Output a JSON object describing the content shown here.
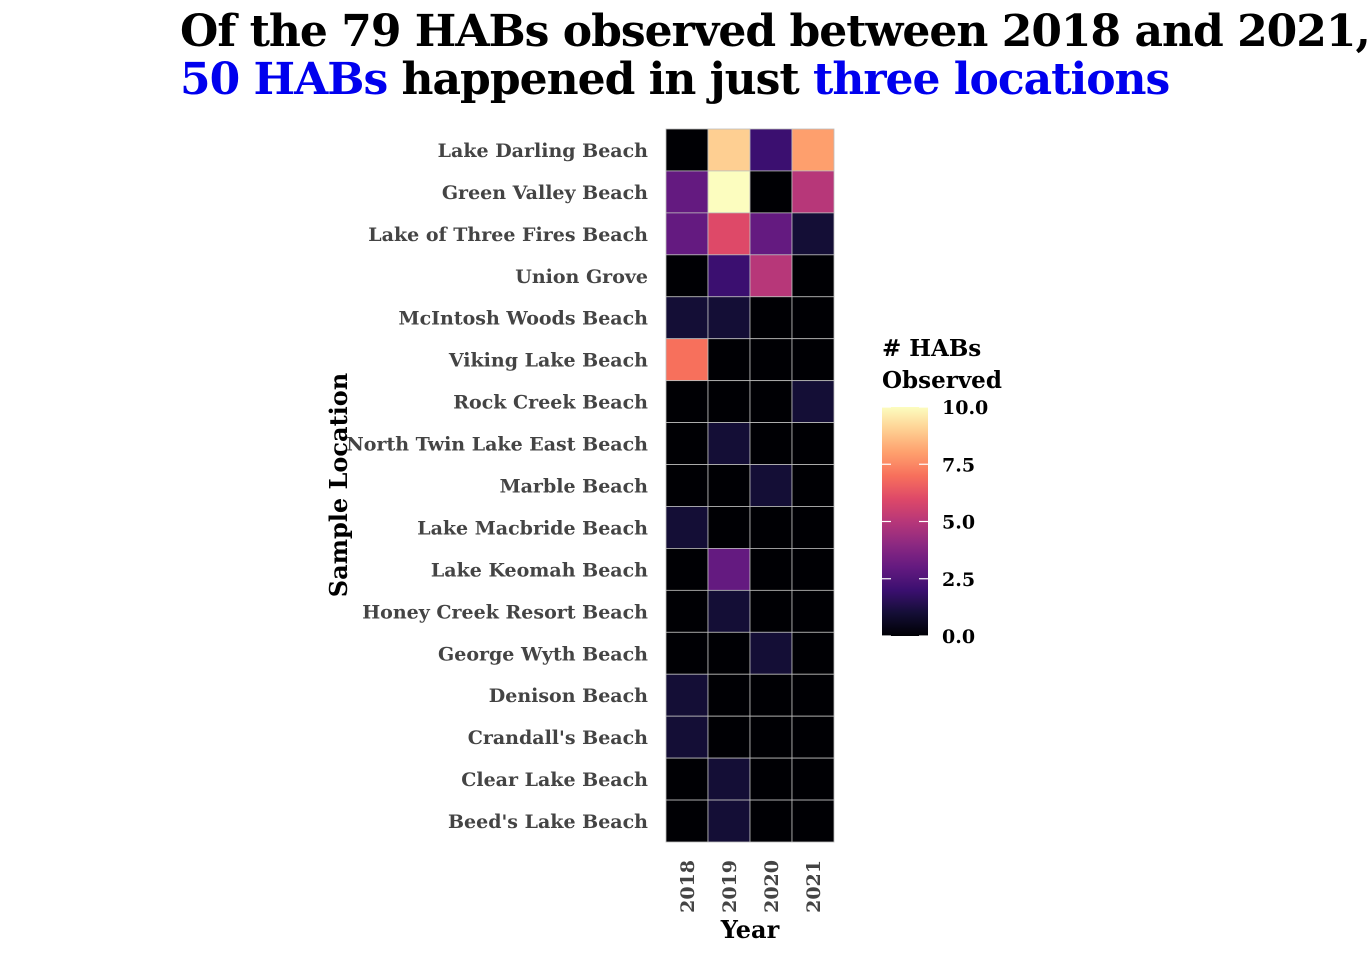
{
  "title": {
    "line1": "Of the 79 HABs observed between 2018 and 2021,",
    "line2_part1": "50 HABs",
    "line2_part2": " happened in just ",
    "line2_part3": "three locations",
    "highlight_color": "#0000ee"
  },
  "chart_data": {
    "type": "heatmap",
    "title": "Of the 79 HABs observed between 2018 and 2021, 50 HABs happened in just three locations",
    "xlabel": "Year",
    "ylabel": "Sample Location",
    "x": [
      "2018",
      "2019",
      "2020",
      "2021"
    ],
    "y": [
      "Lake Darling Beach",
      "Green Valley Beach",
      "Lake of Three Fires Beach",
      "Union Grove",
      "McIntosh Woods Beach",
      "Viking Lake Beach",
      "Rock Creek Beach",
      "North Twin Lake East Beach",
      "Marble Beach",
      "Lake Macbride Beach",
      "Lake Keomah Beach",
      "Honey Creek Resort Beach",
      "George Wyth Beach",
      "Denison Beach",
      "Crandall's Beach",
      "Clear Lake Beach",
      "Beed's Lake Beach"
    ],
    "values": [
      [
        0,
        9,
        2,
        8
      ],
      [
        3,
        10,
        0,
        5
      ],
      [
        3,
        6,
        3,
        1
      ],
      [
        0,
        2,
        5,
        0
      ],
      [
        1,
        1,
        0,
        0
      ],
      [
        7,
        0,
        0,
        0
      ],
      [
        0,
        0,
        0,
        1
      ],
      [
        0,
        1,
        0,
        0
      ],
      [
        0,
        0,
        1,
        0
      ],
      [
        1,
        0,
        0,
        0
      ],
      [
        0,
        3,
        0,
        0
      ],
      [
        0,
        1,
        0,
        0
      ],
      [
        0,
        0,
        1,
        0
      ],
      [
        1,
        0,
        0,
        0
      ],
      [
        1,
        0,
        0,
        0
      ],
      [
        0,
        1,
        0,
        0
      ],
      [
        0,
        1,
        0,
        0
      ]
    ],
    "colorscale": "magma",
    "legend": {
      "title": "# HABs Observed",
      "title_lines": [
        "# HABs",
        "Observed"
      ],
      "ticks": [
        "0.0",
        "2.5",
        "5.0",
        "7.5",
        "10.0"
      ],
      "range": [
        0,
        10
      ],
      "placement": "right"
    },
    "grid": false
  }
}
